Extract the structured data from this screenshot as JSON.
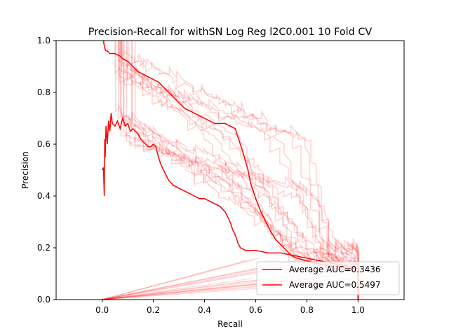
{
  "chart_data": {
    "type": "line",
    "title": "Precision-Recall for withSN Log Reg l2C0.001 10 Fold CV",
    "xlabel": "Recall",
    "ylabel": "Precision",
    "xlim": [
      -0.18,
      1.18
    ],
    "ylim": [
      0.0,
      1.0
    ],
    "xticks": [
      "0.0",
      "0.2",
      "0.4",
      "0.6",
      "0.8",
      "1.0"
    ],
    "yticks": [
      "0.0",
      "0.2",
      "0.4",
      "0.6",
      "0.8",
      "1.0"
    ],
    "legend_position": "lower-right",
    "colors": {
      "series": "#ff0000",
      "folds": "#ff0000"
    },
    "series": [
      {
        "name": "Average AUC=0.3436",
        "x": [
          0.0,
          0.005,
          0.008,
          0.01,
          0.012,
          0.015,
          0.02,
          0.025,
          0.03,
          0.035,
          0.04,
          0.05,
          0.06,
          0.07,
          0.08,
          0.09,
          0.1,
          0.11,
          0.12,
          0.13,
          0.14,
          0.15,
          0.16,
          0.17,
          0.18,
          0.19,
          0.2,
          0.21,
          0.22,
          0.23,
          0.24,
          0.25,
          0.26,
          0.27,
          0.28,
          0.3,
          0.32,
          0.34,
          0.36,
          0.38,
          0.4,
          0.42,
          0.44,
          0.46,
          0.48,
          0.49,
          0.5,
          0.51,
          0.52,
          0.53,
          0.54,
          0.56,
          0.6,
          0.65,
          0.7,
          0.75,
          0.8,
          0.85,
          0.9,
          0.95,
          1.0,
          1.0
        ],
        "y": [
          0.5,
          0.51,
          0.4,
          0.62,
          0.55,
          0.67,
          0.6,
          0.69,
          0.65,
          0.72,
          0.68,
          0.67,
          0.69,
          0.66,
          0.7,
          0.67,
          0.68,
          0.65,
          0.66,
          0.65,
          0.64,
          0.62,
          0.61,
          0.6,
          0.59,
          0.59,
          0.6,
          0.59,
          0.55,
          0.52,
          0.5,
          0.48,
          0.46,
          0.45,
          0.44,
          0.43,
          0.42,
          0.41,
          0.4,
          0.39,
          0.39,
          0.38,
          0.37,
          0.36,
          0.34,
          0.32,
          0.3,
          0.27,
          0.25,
          0.22,
          0.2,
          0.19,
          0.19,
          0.18,
          0.18,
          0.17,
          0.16,
          0.15,
          0.14,
          0.13,
          0.12,
          0.0
        ]
      },
      {
        "name": "Average AUC=0.5497",
        "x": [
          0.0,
          0.005,
          0.008,
          0.01,
          0.015,
          0.02,
          0.03,
          0.05,
          0.07,
          0.08,
          0.1,
          0.12,
          0.14,
          0.16,
          0.18,
          0.2,
          0.22,
          0.24,
          0.26,
          0.28,
          0.3,
          0.32,
          0.34,
          0.36,
          0.38,
          0.4,
          0.42,
          0.44,
          0.46,
          0.48,
          0.5,
          0.52,
          0.53,
          0.55,
          0.57,
          0.58,
          0.6,
          0.62,
          0.64,
          0.66,
          0.68,
          0.7,
          0.72,
          0.74,
          0.76,
          0.8,
          0.84,
          0.88,
          0.92,
          0.96,
          1.0,
          1.0
        ],
        "y": [
          1.0,
          1.0,
          0.98,
          0.97,
          0.96,
          0.96,
          0.95,
          0.95,
          0.94,
          0.93,
          0.92,
          0.9,
          0.88,
          0.87,
          0.86,
          0.85,
          0.84,
          0.82,
          0.8,
          0.78,
          0.76,
          0.74,
          0.73,
          0.72,
          0.71,
          0.7,
          0.69,
          0.68,
          0.68,
          0.68,
          0.67,
          0.66,
          0.63,
          0.57,
          0.5,
          0.45,
          0.39,
          0.34,
          0.3,
          0.26,
          0.23,
          0.21,
          0.19,
          0.17,
          0.16,
          0.15,
          0.14,
          0.13,
          0.13,
          0.12,
          0.12,
          0.0
        ]
      }
    ]
  }
}
